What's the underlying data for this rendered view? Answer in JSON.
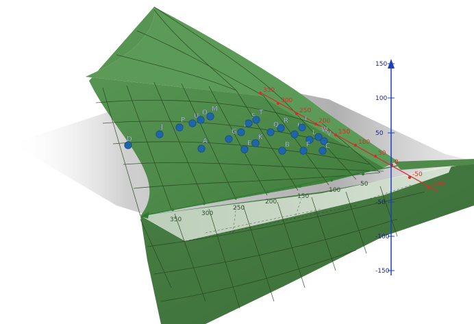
{
  "colors": {
    "surface_fill": "#4e8a4a",
    "surface_dark": "#3a6e37",
    "surface_light": "#8db486",
    "grid_line": "#27451f",
    "shadow_plane": "#9e9e9e",
    "point_fill": "#1f66a8",
    "point_label": "#dde8f8",
    "x_axis": "#d32f2f",
    "y_axis": "#2e7d32",
    "z_axis": "#1a3fbf"
  },
  "axes": {
    "z": {
      "ticks": [
        "150",
        "100",
        "50",
        "-50",
        "-100",
        "-150"
      ]
    },
    "x": {
      "ticks": [
        "350",
        "300",
        "250",
        "200",
        "150",
        "100",
        "50",
        "0",
        "-50",
        "-100"
      ]
    },
    "y": {
      "ticks": [
        "350",
        "300",
        "250",
        "200",
        "150",
        "100",
        "50"
      ]
    }
  },
  "points": [
    {
      "label": "D",
      "shape": "circle"
    },
    {
      "label": "J",
      "shape": "circle"
    },
    {
      "label": "P",
      "shape": "circle"
    },
    {
      "label": "U",
      "shape": "circle"
    },
    {
      "label": "O",
      "shape": "circle"
    },
    {
      "label": "M",
      "shape": "circle"
    },
    {
      "label": "A",
      "shape": "circle"
    },
    {
      "label": "G",
      "shape": "circle"
    },
    {
      "label": "N",
      "shape": "circle"
    },
    {
      "label": "S",
      "shape": "circle"
    },
    {
      "label": "T",
      "shape": "circle"
    },
    {
      "label": "E",
      "shape": "circle"
    },
    {
      "label": "K",
      "shape": "circle"
    },
    {
      "label": "Q",
      "shape": "circle"
    },
    {
      "label": "R",
      "shape": "circle"
    },
    {
      "label": "B",
      "shape": "circle"
    },
    {
      "label": "H",
      "shape": "circle"
    },
    {
      "label": "I",
      "shape": "circle"
    },
    {
      "label": "L",
      "shape": "circle"
    },
    {
      "label": "F",
      "shape": "circle"
    },
    {
      "label": "W",
      "shape": "circle"
    },
    {
      "label": "V",
      "shape": "circle"
    },
    {
      "label": "C",
      "shape": "circle"
    }
  ]
}
